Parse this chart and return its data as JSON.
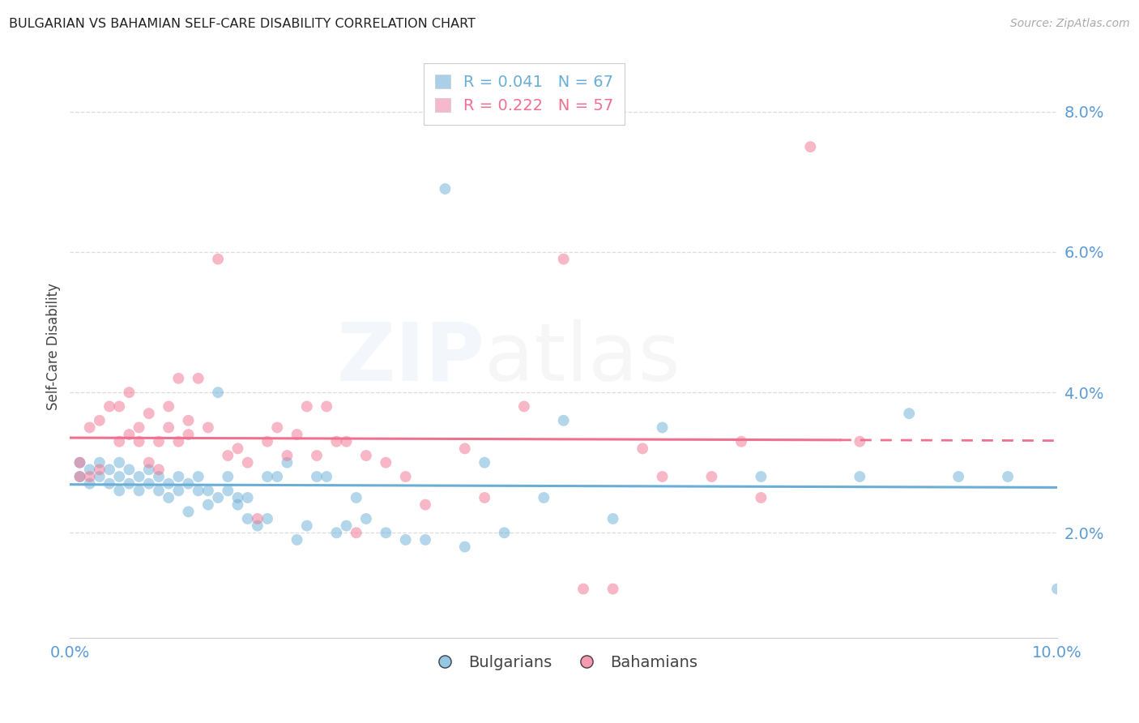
{
  "title": "BULGARIAN VS BAHAMIAN SELF-CARE DISABILITY CORRELATION CHART",
  "source": "Source: ZipAtlas.com",
  "ylabel": "Self-Care Disability",
  "xlim": [
    0.0,
    0.1
  ],
  "ylim": [
    0.005,
    0.088
  ],
  "yticks": [
    0.02,
    0.04,
    0.06,
    0.08
  ],
  "ytick_labels": [
    "2.0%",
    "4.0%",
    "6.0%",
    "8.0%"
  ],
  "xticks": [
    0.0,
    0.02,
    0.04,
    0.06,
    0.08,
    0.1
  ],
  "xtick_labels": [
    "0.0%",
    "",
    "",
    "",
    "",
    "10.0%"
  ],
  "bg_color": "#ffffff",
  "grid_color": "#dddddd",
  "title_color": "#222222",
  "axis_label_color": "#444444",
  "tick_color": "#5b9bd5",
  "source_color": "#aaaaaa",
  "bulgarians_color": "#6aaed6",
  "bahamians_color": "#f07090",
  "R_bulgarian": 0.041,
  "N_bulgarian": 67,
  "R_bahamian": 0.222,
  "N_bahamian": 57,
  "bulgarians_x": [
    0.001,
    0.001,
    0.002,
    0.002,
    0.003,
    0.003,
    0.004,
    0.004,
    0.005,
    0.005,
    0.005,
    0.006,
    0.006,
    0.007,
    0.007,
    0.008,
    0.008,
    0.009,
    0.009,
    0.01,
    0.01,
    0.011,
    0.011,
    0.012,
    0.012,
    0.013,
    0.013,
    0.014,
    0.014,
    0.015,
    0.015,
    0.016,
    0.016,
    0.017,
    0.017,
    0.018,
    0.018,
    0.019,
    0.02,
    0.02,
    0.021,
    0.022,
    0.023,
    0.024,
    0.025,
    0.026,
    0.027,
    0.028,
    0.029,
    0.03,
    0.032,
    0.034,
    0.036,
    0.038,
    0.04,
    0.042,
    0.044,
    0.048,
    0.05,
    0.055,
    0.06,
    0.07,
    0.08,
    0.085,
    0.09,
    0.095,
    0.1
  ],
  "bulgarians_y": [
    0.028,
    0.03,
    0.029,
    0.027,
    0.028,
    0.03,
    0.027,
    0.029,
    0.028,
    0.026,
    0.03,
    0.029,
    0.027,
    0.028,
    0.026,
    0.027,
    0.029,
    0.026,
    0.028,
    0.025,
    0.027,
    0.026,
    0.028,
    0.023,
    0.027,
    0.026,
    0.028,
    0.024,
    0.026,
    0.04,
    0.025,
    0.026,
    0.028,
    0.025,
    0.024,
    0.022,
    0.025,
    0.021,
    0.028,
    0.022,
    0.028,
    0.03,
    0.019,
    0.021,
    0.028,
    0.028,
    0.02,
    0.021,
    0.025,
    0.022,
    0.02,
    0.019,
    0.019,
    0.069,
    0.018,
    0.03,
    0.02,
    0.025,
    0.036,
    0.022,
    0.035,
    0.028,
    0.028,
    0.037,
    0.028,
    0.028,
    0.012
  ],
  "bahamians_x": [
    0.001,
    0.001,
    0.002,
    0.002,
    0.003,
    0.003,
    0.004,
    0.005,
    0.005,
    0.006,
    0.006,
    0.007,
    0.007,
    0.008,
    0.008,
    0.009,
    0.009,
    0.01,
    0.01,
    0.011,
    0.011,
    0.012,
    0.012,
    0.013,
    0.014,
    0.015,
    0.016,
    0.017,
    0.018,
    0.019,
    0.02,
    0.021,
    0.022,
    0.023,
    0.024,
    0.025,
    0.026,
    0.027,
    0.028,
    0.029,
    0.03,
    0.032,
    0.034,
    0.036,
    0.04,
    0.042,
    0.046,
    0.05,
    0.052,
    0.055,
    0.058,
    0.06,
    0.065,
    0.068,
    0.07,
    0.075,
    0.08
  ],
  "bahamians_y": [
    0.028,
    0.03,
    0.028,
    0.035,
    0.029,
    0.036,
    0.038,
    0.033,
    0.038,
    0.034,
    0.04,
    0.033,
    0.035,
    0.03,
    0.037,
    0.029,
    0.033,
    0.038,
    0.035,
    0.042,
    0.033,
    0.036,
    0.034,
    0.042,
    0.035,
    0.059,
    0.031,
    0.032,
    0.03,
    0.022,
    0.033,
    0.035,
    0.031,
    0.034,
    0.038,
    0.031,
    0.038,
    0.033,
    0.033,
    0.02,
    0.031,
    0.03,
    0.028,
    0.024,
    0.032,
    0.025,
    0.038,
    0.059,
    0.012,
    0.012,
    0.032,
    0.028,
    0.028,
    0.033,
    0.025,
    0.075,
    0.033
  ],
  "watermark_text": "ZIPatlas",
  "watermark_color": "#5b9bd5",
  "watermark_alpha": 0.07
}
